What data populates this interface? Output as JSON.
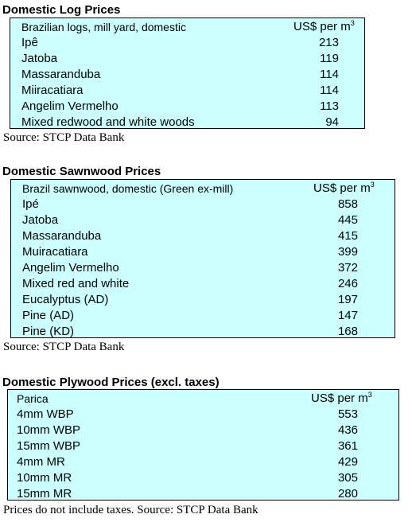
{
  "log": {
    "title": "Domestic Log Prices",
    "header": {
      "label": "Brazilian logs, mill yard, domestic",
      "unit": "US$ per m",
      "unit_sup": "3"
    },
    "rows": [
      {
        "name": "Ipê",
        "value": "213"
      },
      {
        "name": "Jatoba",
        "value": "119"
      },
      {
        "name": "Massaranduba",
        "value": "114"
      },
      {
        "name": "Miiracatiara",
        "value": "114"
      },
      {
        "name": "Angelim Vermelho",
        "value": "113"
      },
      {
        "name": "Mixed redwood and white woods",
        "value": "94"
      }
    ],
    "source": "Source: STCP Data Bank"
  },
  "sawn": {
    "title": "Domestic Sawnwood Prices",
    "header": {
      "label": "Brazil sawnwood, domestic (Green ex-mill)",
      "unit": "US$ per m",
      "unit_sup": "3"
    },
    "rows": [
      {
        "name": "Ipé",
        "value": "858"
      },
      {
        "name": "Jatoba",
        "value": "445"
      },
      {
        "name": "Massaranduba",
        "value": "415"
      },
      {
        "name": "Muiracatiara",
        "value": "399"
      },
      {
        "name": "Angelim Vermelho",
        "value": "372"
      },
      {
        "name": "Mixed red and white",
        "value": "246"
      },
      {
        "name": "Eucalyptus (AD)",
        "value": "197"
      },
      {
        "name": "Pine (AD)",
        "value": "147"
      },
      {
        "name": "Pine (KD)",
        "value": "168"
      }
    ],
    "source": "Source: STCP Data Bank"
  },
  "ply": {
    "title": "Domestic Plywood Prices (excl. taxes)",
    "header": {
      "label": "Parica",
      "unit": "US$ per m",
      "unit_sup": "3"
    },
    "rows": [
      {
        "name": "4mm WBP",
        "value": "553"
      },
      {
        "name": "10mm WBP",
        "value": "436"
      },
      {
        "name": "15mm WBP",
        "value": "361"
      },
      {
        "name": "4mm MR",
        "value": "429"
      },
      {
        "name": "10mm MR",
        "value": "305"
      },
      {
        "name": "15mm MR",
        "value": "280"
      }
    ],
    "source": "Prices do not include taxes. Source: STCP Data Bank"
  }
}
